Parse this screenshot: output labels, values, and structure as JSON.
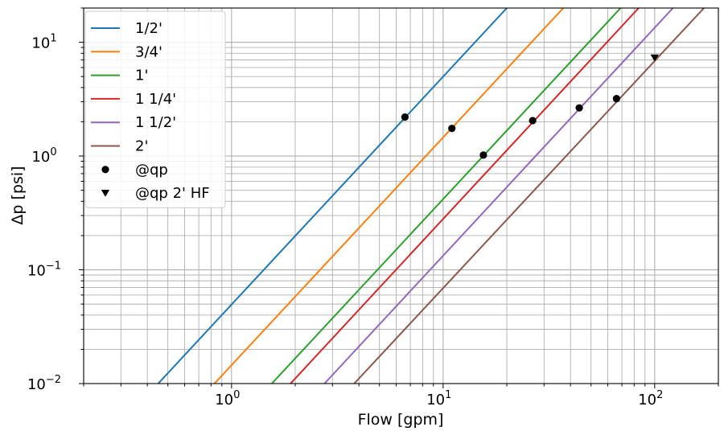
{
  "chart_data": {
    "type": "line",
    "title": "",
    "xlabel": "Flow [gpm]",
    "ylabel": "Δp [psi]",
    "xscale": "log",
    "yscale": "log",
    "xlim": [
      0.2,
      200
    ],
    "ylim": [
      0.01,
      20
    ],
    "grid": "both major and minor",
    "legend_position": "top-left",
    "x_ticks": [
      {
        "value": 1,
        "base": "10",
        "exp": "0"
      },
      {
        "value": 10,
        "base": "10",
        "exp": "1"
      },
      {
        "value": 100,
        "base": "10",
        "exp": "2"
      }
    ],
    "y_ticks": [
      {
        "value": 0.01,
        "base": "10",
        "exp": "−2"
      },
      {
        "value": 0.1,
        "base": "10",
        "exp": "−1"
      },
      {
        "value": 1,
        "base": "10",
        "exp": "0"
      },
      {
        "value": 10,
        "base": "10",
        "exp": "1"
      }
    ],
    "series": [
      {
        "name": "1/2'",
        "color": "#1f77b4",
        "kind": "line",
        "points": [
          [
            0.45,
            0.01
          ],
          [
            20,
            20
          ]
        ]
      },
      {
        "name": "3/4'",
        "color": "#ff7f0e",
        "kind": "line",
        "points": [
          [
            0.83,
            0.01
          ],
          [
            37,
            20
          ]
        ]
      },
      {
        "name": "1'",
        "color": "#2ca02c",
        "kind": "line",
        "points": [
          [
            1.55,
            0.01
          ],
          [
            69,
            20
          ]
        ]
      },
      {
        "name": "1 1/4'",
        "color": "#d62728",
        "kind": "line",
        "points": [
          [
            1.9,
            0.01
          ],
          [
            84,
            20
          ]
        ]
      },
      {
        "name": "1 1/2'",
        "color": "#9467bd",
        "kind": "line",
        "points": [
          [
            2.75,
            0.01
          ],
          [
            122,
            20
          ]
        ]
      },
      {
        "name": "2'",
        "color": "#8c564b",
        "kind": "line",
        "points": [
          [
            3.8,
            0.01
          ],
          [
            171,
            20
          ]
        ]
      },
      {
        "name": "@qp",
        "color": "#000000",
        "kind": "marker-circle",
        "points": [
          [
            6.6,
            2.2
          ],
          [
            11,
            1.75
          ],
          [
            15.5,
            1.02
          ],
          [
            26.5,
            2.05
          ],
          [
            44,
            2.65
          ],
          [
            66,
            3.2
          ]
        ]
      },
      {
        "name": "@qp 2' HF",
        "color": "#000000",
        "kind": "marker-triangle-down",
        "points": [
          [
            100,
            7.3
          ]
        ]
      }
    ]
  }
}
